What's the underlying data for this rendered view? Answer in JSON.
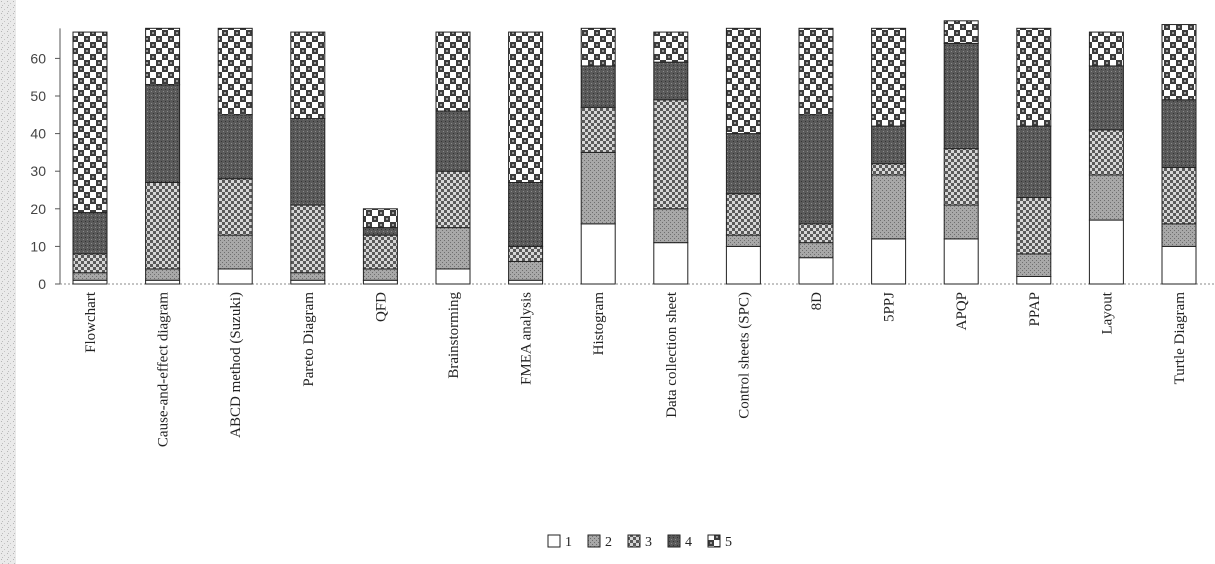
{
  "chart_data": {
    "type": "bar",
    "stacked": true,
    "title": "",
    "xlabel": "",
    "ylabel": "",
    "ylim": [
      0,
      68
    ],
    "yticks": [
      0,
      10,
      20,
      30,
      40,
      50,
      60
    ],
    "grid": false,
    "legend_position": "bottom-center",
    "categories": [
      "Flowchart",
      "Cause-and-effect diagram",
      "ABCD method (Suzuki)",
      "Pareto Diagram",
      "QFD",
      "Brainstorming",
      "FMEA analysis",
      "Histogram",
      "Data collection sheet",
      "Control sheets (SPC)",
      "8D",
      "5PPJ",
      "APQP",
      "PPAP",
      "Layout",
      "Turtle Diagram"
    ],
    "series": [
      {
        "name": "1",
        "color": "#ffffff",
        "pattern": "none",
        "values": [
          1,
          1,
          4,
          1,
          1,
          4,
          1,
          16,
          11,
          10,
          7,
          12,
          12,
          2,
          17,
          10
        ]
      },
      {
        "name": "2",
        "color": "#9a9a9a",
        "pattern": "dots",
        "values": [
          2,
          3,
          9,
          2,
          3,
          11,
          5,
          19,
          9,
          3,
          4,
          17,
          9,
          6,
          12,
          6
        ]
      },
      {
        "name": "3",
        "color": "#bdbdbd",
        "pattern": "check",
        "values": [
          5,
          23,
          15,
          18,
          9,
          15,
          4,
          12,
          29,
          11,
          5,
          3,
          15,
          15,
          12,
          15
        ]
      },
      {
        "name": "4",
        "color": "#555555",
        "pattern": "dots",
        "values": [
          11,
          26,
          17,
          23,
          2,
          16,
          17,
          11,
          10,
          16,
          29,
          10,
          28,
          19,
          17,
          18
        ]
      },
      {
        "name": "5",
        "color": "#dddddd",
        "pattern": "bigcheck",
        "values": [
          48,
          15,
          23,
          23,
          5,
          21,
          40,
          10,
          8,
          28,
          23,
          26,
          6,
          26,
          9,
          20
        ]
      }
    ]
  }
}
